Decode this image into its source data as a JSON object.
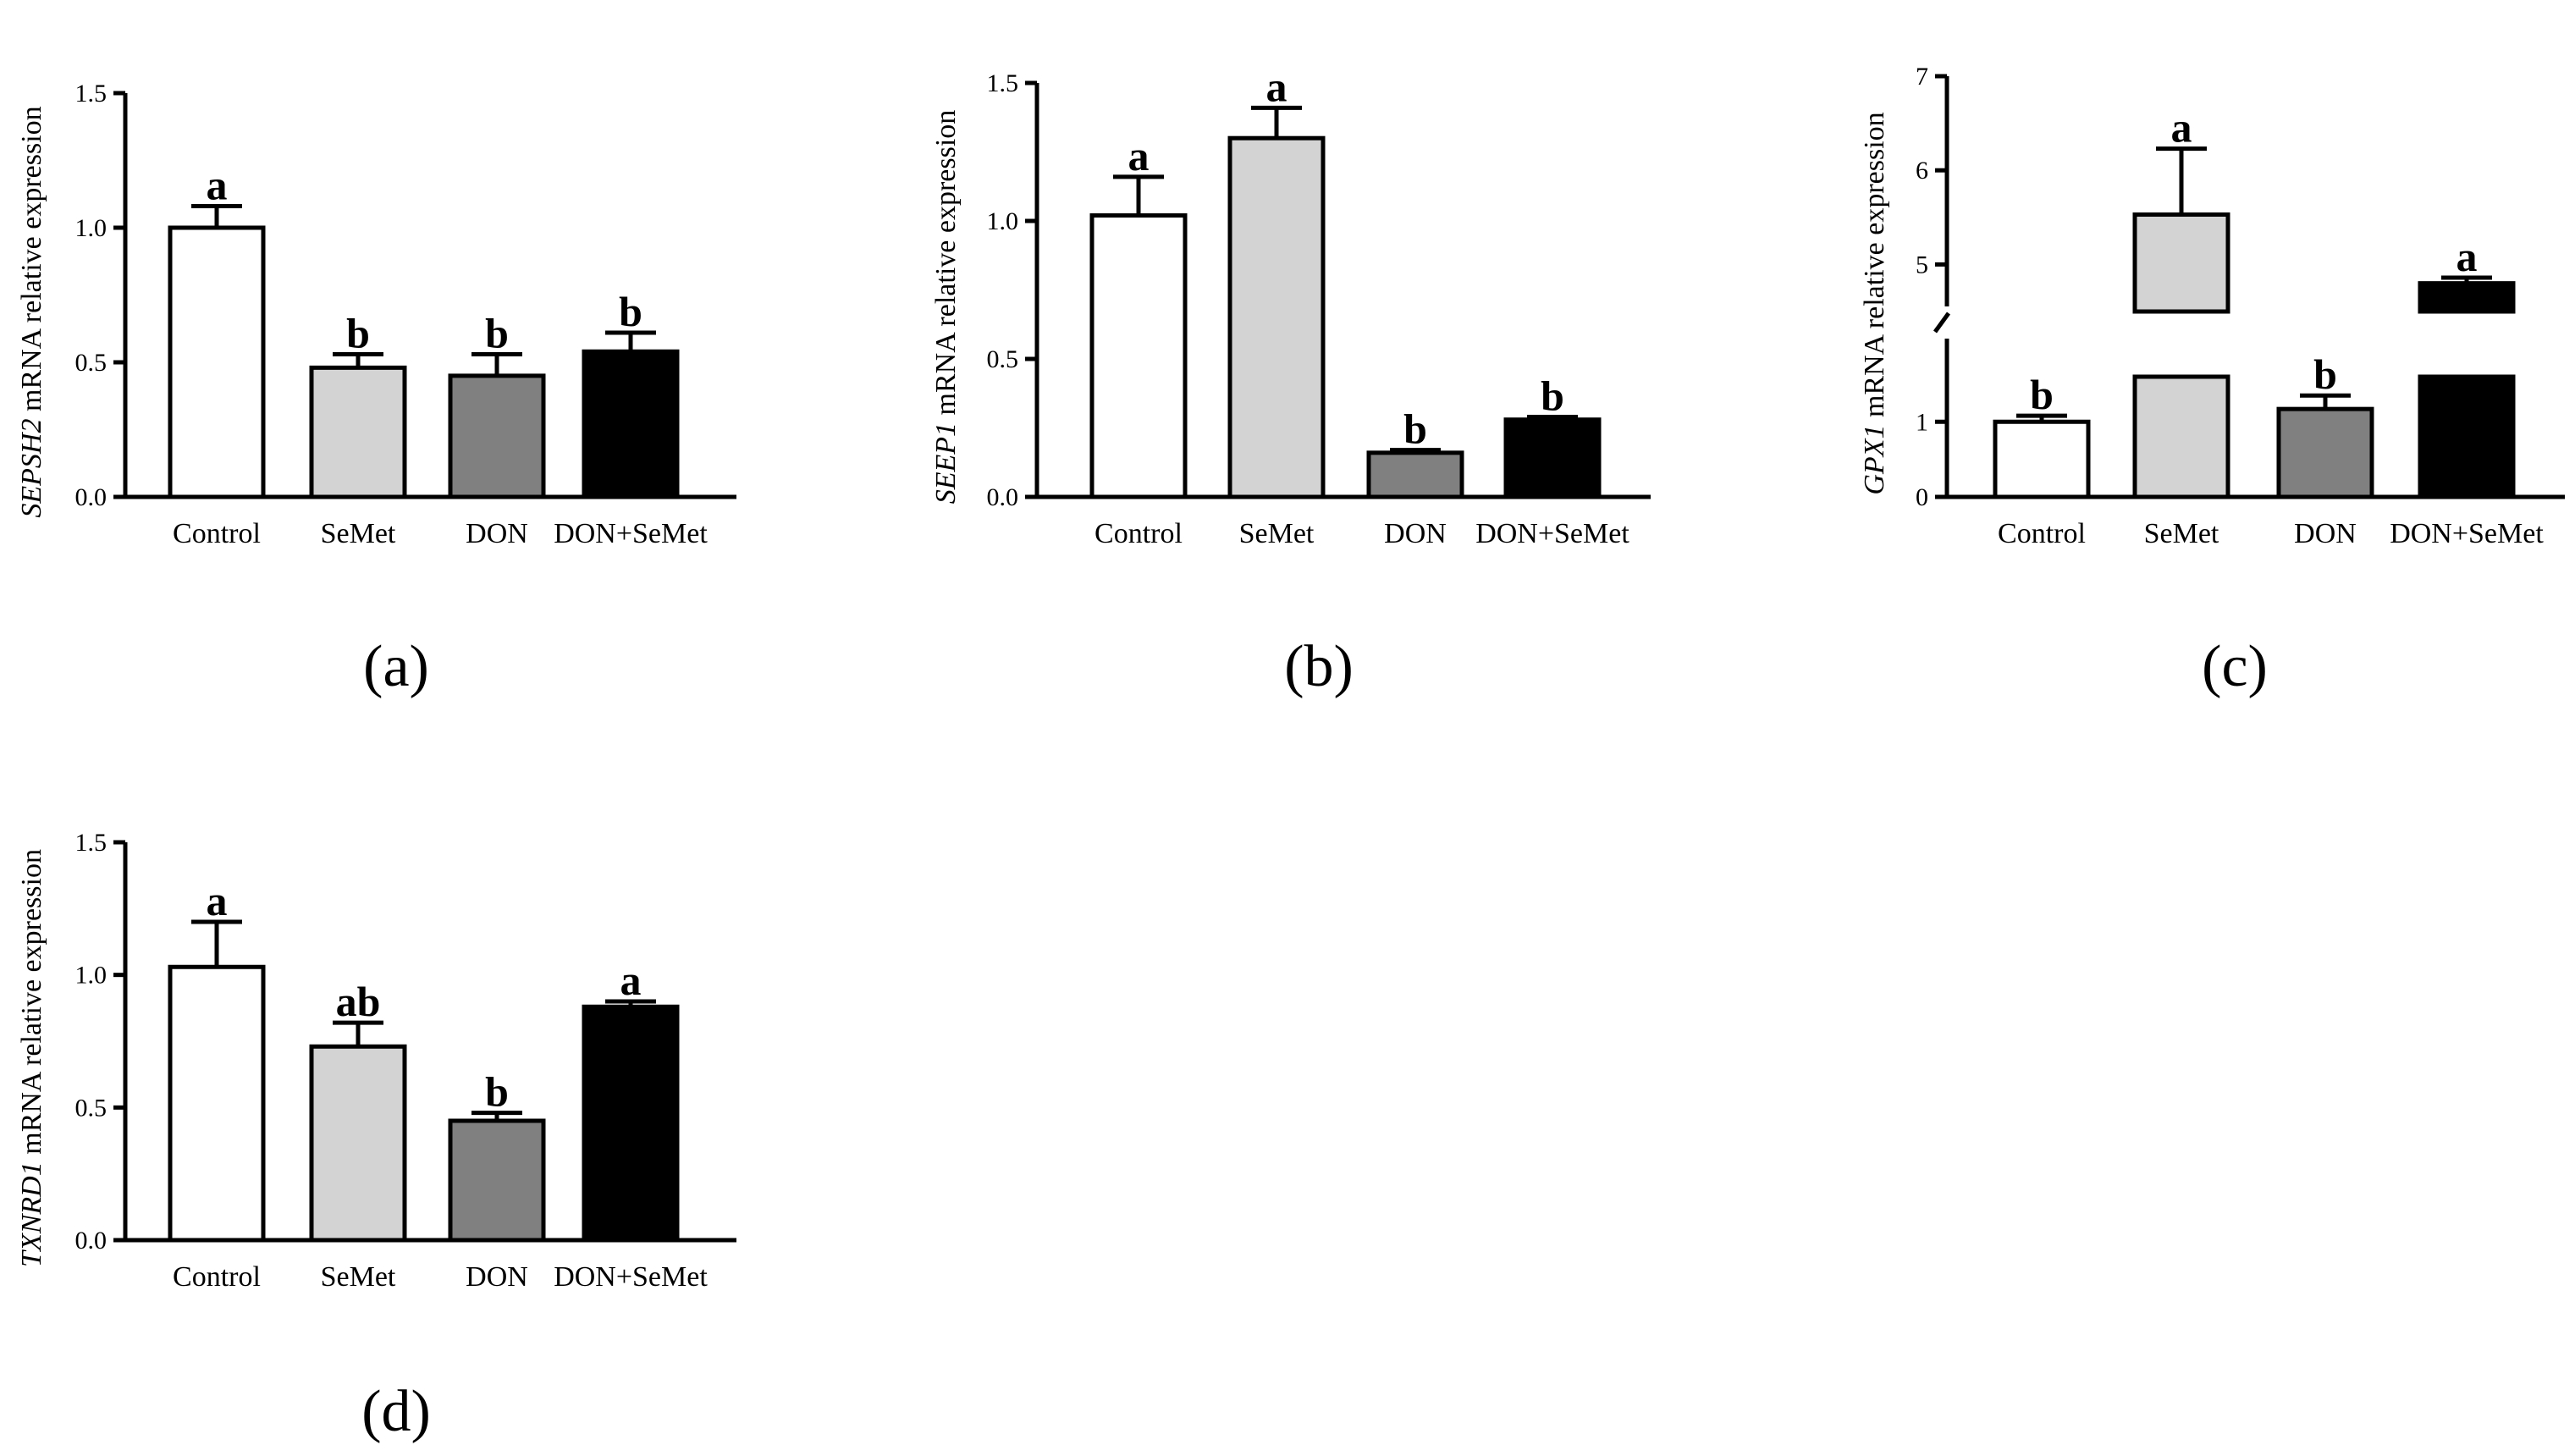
{
  "chart_data": [
    {
      "type": "bar",
      "panel": "(a)",
      "ylabel_gene": "SEPSH2",
      "ylabel_rest": " mRNA relative expression",
      "categories": [
        "Control",
        "SeMet",
        "DON",
        "DON+SeMet"
      ],
      "values": [
        1.0,
        0.48,
        0.45,
        0.54
      ],
      "errors": [
        0.08,
        0.05,
        0.08,
        0.07
      ],
      "significance": [
        "a",
        "b",
        "b",
        "b"
      ],
      "bar_colors": [
        "#ffffff",
        "#d3d3d3",
        "#808080",
        "#000000"
      ],
      "ylim": [
        0,
        1.5
      ],
      "yticks": [
        "0.0",
        "0.5",
        "1.0",
        "1.5"
      ]
    },
    {
      "type": "bar",
      "panel": "(b)",
      "ylabel_gene": "SEEP1",
      "ylabel_rest": " mRNA relative expression",
      "categories": [
        "Control",
        "SeMet",
        "DON",
        "DON+SeMet"
      ],
      "values": [
        1.02,
        1.3,
        0.16,
        0.28
      ],
      "errors": [
        0.14,
        0.11,
        0.01,
        0.01
      ],
      "significance": [
        "a",
        "a",
        "b",
        "b"
      ],
      "bar_colors": [
        "#ffffff",
        "#d3d3d3",
        "#808080",
        "#000000"
      ],
      "ylim": [
        0,
        1.5
      ],
      "yticks": [
        "0.0",
        "0.5",
        "1.0",
        "1.5"
      ]
    },
    {
      "type": "bar",
      "panel": "(c)",
      "ylabel_gene": "GPX1",
      "ylabel_rest": " mRNA relative expression",
      "categories": [
        "Control",
        "SeMet",
        "DON",
        "DON+SeMet"
      ],
      "values": [
        1.0,
        5.53,
        1.17,
        4.8
      ],
      "errors": [
        0.08,
        0.7,
        0.18,
        0.06
      ],
      "significance": [
        "b",
        "a",
        "b",
        "a"
      ],
      "bar_colors": [
        "#ffffff",
        "#d3d3d3",
        "#808080",
        "#000000"
      ],
      "axis_break": [
        1.6,
        4.5
      ],
      "ylim": [
        0,
        7
      ],
      "yticks": [
        "0",
        "1",
        "5",
        "6",
        "7"
      ]
    },
    {
      "type": "bar",
      "panel": "(d)",
      "ylabel_gene": "TXNRD1",
      "ylabel_rest": " mRNA relative expression",
      "categories": [
        "Control",
        "SeMet",
        "DON",
        "DON+SeMet"
      ],
      "values": [
        1.03,
        0.73,
        0.45,
        0.88
      ],
      "errors": [
        0.17,
        0.09,
        0.03,
        0.02
      ],
      "significance": [
        "a",
        "ab",
        "b",
        "a"
      ],
      "bar_colors": [
        "#ffffff",
        "#d3d3d3",
        "#808080",
        "#000000"
      ],
      "ylim": [
        0,
        1.5
      ],
      "yticks": [
        "0.0",
        "0.5",
        "1.0",
        "1.5"
      ]
    }
  ]
}
